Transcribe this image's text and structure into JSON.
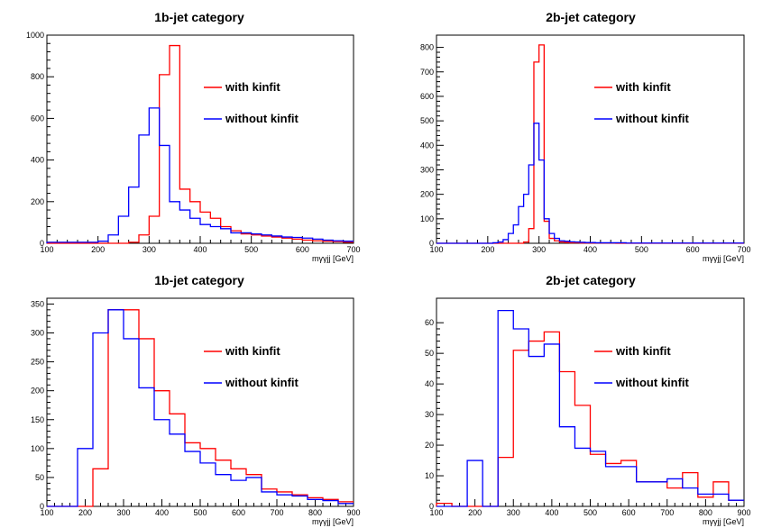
{
  "colors": {
    "with_kinfit": "#ff0000",
    "without_kinfit": "#0000ff"
  },
  "chart_data": [
    {
      "type": "histogram",
      "title": "1b-jet category",
      "xlabel": "m_{γγjj} [GeV]",
      "xlim": [
        100,
        700
      ],
      "ylim": [
        0,
        1000
      ],
      "xticks": [
        100,
        200,
        300,
        400,
        500,
        600,
        700
      ],
      "yticks": [
        0,
        200,
        400,
        600,
        800,
        1000
      ],
      "bin_width": 20,
      "series": [
        {
          "name": "with kinfit",
          "color": "#ff0000",
          "values": [
            0,
            0,
            0,
            0,
            0,
            0,
            0,
            0,
            5,
            40,
            130,
            810,
            950,
            260,
            200,
            150,
            120,
            80,
            60,
            45,
            40,
            35,
            30,
            25,
            20,
            15,
            12,
            10,
            8,
            5
          ]
        },
        {
          "name": "without kinfit",
          "color": "#0000ff",
          "values": [
            5,
            5,
            5,
            5,
            5,
            10,
            40,
            130,
            270,
            520,
            650,
            470,
            200,
            160,
            120,
            90,
            80,
            70,
            50,
            50,
            45,
            40,
            35,
            30,
            28,
            25,
            20,
            15,
            12,
            10
          ]
        }
      ],
      "legend": [
        "with kinfit",
        "without kinfit"
      ]
    },
    {
      "type": "histogram",
      "title": "2b-jet category",
      "xlabel": "m_{γγjj} [GeV]",
      "xlim": [
        100,
        700
      ],
      "ylim": [
        0,
        850
      ],
      "xticks": [
        100,
        200,
        300,
        400,
        500,
        600,
        700
      ],
      "yticks": [
        0,
        100,
        200,
        300,
        400,
        500,
        600,
        700,
        800
      ],
      "bin_width": 10,
      "series": [
        {
          "name": "with kinfit",
          "color": "#ff0000",
          "values": [
            0,
            0,
            0,
            0,
            0,
            0,
            0,
            0,
            0,
            0,
            0,
            0,
            0,
            0,
            0,
            0,
            0,
            5,
            60,
            740,
            810,
            90,
            20,
            10,
            5,
            3,
            2,
            2,
            1,
            1,
            1,
            1,
            1,
            1,
            1,
            0,
            0,
            0,
            0,
            0,
            0,
            0,
            0,
            0,
            0,
            0,
            0,
            0,
            0,
            0,
            0,
            0,
            0,
            0,
            0,
            0,
            0,
            0,
            0,
            0
          ]
        },
        {
          "name": "without kinfit",
          "color": "#0000ff",
          "values": [
            0,
            0,
            0,
            0,
            0,
            0,
            0,
            0,
            0,
            0,
            0,
            2,
            5,
            15,
            40,
            75,
            150,
            200,
            320,
            490,
            340,
            100,
            40,
            20,
            10,
            8,
            6,
            5,
            4,
            3,
            3,
            2,
            2,
            2,
            2,
            2,
            2,
            1,
            1,
            1,
            1,
            1,
            1,
            1,
            1,
            1,
            1,
            1,
            1,
            1,
            1,
            1,
            1,
            1,
            1,
            1,
            1,
            1,
            1,
            1
          ]
        }
      ],
      "legend": [
        "with kinfit",
        "without kinfit"
      ]
    },
    {
      "type": "histogram",
      "title": "1b-jet category",
      "xlabel": "m_{γγjj} [GeV]",
      "xlim": [
        100,
        900
      ],
      "ylim": [
        0,
        360
      ],
      "xticks": [
        100,
        200,
        300,
        400,
        500,
        600,
        700,
        800,
        900
      ],
      "yticks": [
        0,
        50,
        100,
        150,
        200,
        250,
        300,
        350
      ],
      "bin_width": 40,
      "series": [
        {
          "name": "with kinfit",
          "color": "#ff0000",
          "values": [
            0,
            0,
            0,
            65,
            340,
            340,
            290,
            200,
            160,
            110,
            100,
            80,
            65,
            55,
            30,
            25,
            20,
            15,
            12,
            8
          ]
        },
        {
          "name": "without kinfit",
          "color": "#0000ff",
          "values": [
            0,
            0,
            100,
            300,
            340,
            290,
            205,
            150,
            125,
            95,
            75,
            55,
            45,
            50,
            25,
            20,
            18,
            12,
            10,
            5
          ]
        }
      ],
      "legend": [
        "with kinfit",
        "without kinfit"
      ]
    },
    {
      "type": "histogram",
      "title": "2b-jet category",
      "xlabel": "m_{γγjj} [GeV]",
      "xlim": [
        100,
        900
      ],
      "ylim": [
        0,
        68
      ],
      "xticks": [
        100,
        200,
        300,
        400,
        500,
        600,
        700,
        800,
        900
      ],
      "yticks": [
        0,
        10,
        20,
        30,
        40,
        50,
        60
      ],
      "bin_width": 40,
      "series": [
        {
          "name": "with kinfit",
          "color": "#ff0000",
          "values": [
            1,
            0,
            0,
            0,
            16,
            51,
            54,
            57,
            44,
            33,
            17,
            14,
            15,
            8,
            8,
            6,
            11,
            3,
            8,
            2
          ]
        },
        {
          "name": "without kinfit",
          "color": "#0000ff",
          "values": [
            0,
            0,
            15,
            0,
            64,
            58,
            49,
            53,
            26,
            19,
            18,
            13,
            13,
            8,
            8,
            9,
            6,
            4,
            4,
            2
          ]
        }
      ],
      "legend": [
        "with kinfit",
        "without kinfit"
      ]
    }
  ]
}
